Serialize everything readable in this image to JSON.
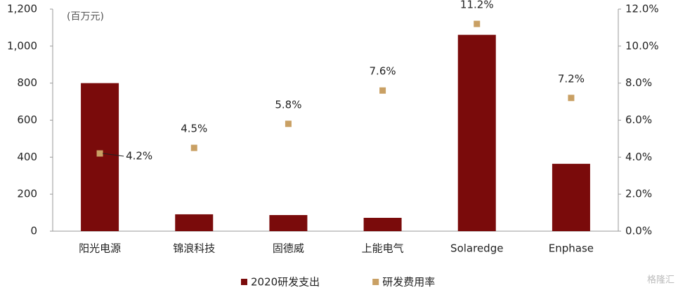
{
  "chart_data": {
    "type": "bar",
    "unit_note": "(百万元)",
    "categories": [
      "阳光电源",
      "锦浪科技",
      "固德威",
      "上能电气",
      "Solaredge",
      "Enphase"
    ],
    "series": [
      {
        "name": "2020研发支出",
        "type": "bar",
        "color": "#7a0b0b",
        "values": [
          800,
          91,
          87,
          72,
          1061,
          364
        ]
      },
      {
        "name": "研发费用率",
        "type": "scatter",
        "axis": "y2",
        "color": "#c9a064",
        "values": [
          4.2,
          4.5,
          5.8,
          7.6,
          11.2,
          7.2
        ],
        "value_labels": [
          "4.2%",
          "4.5%",
          "5.8%",
          "7.6%",
          "11.2%",
          "7.2%"
        ]
      }
    ],
    "ylim": [
      0,
      1200
    ],
    "yticks": [
      0,
      200,
      400,
      600,
      800,
      {
        "value": 1000,
        "label": "1,000"
      },
      {
        "value": 1200,
        "label": "1,200"
      }
    ],
    "y2lim": [
      0,
      12
    ],
    "y2ticks": [
      {
        "value": 0,
        "label": "0.0%"
      },
      {
        "value": 2,
        "label": "2.0%"
      },
      {
        "value": 4,
        "label": "4.0%"
      },
      {
        "value": 6,
        "label": "6.0%"
      },
      {
        "value": 8,
        "label": "8.0%"
      },
      {
        "value": 10,
        "label": "10.0%"
      },
      {
        "value": 12,
        "label": "12.0%"
      }
    ],
    "grid": false,
    "legend": "bottom",
    "watermark": "格隆汇"
  }
}
